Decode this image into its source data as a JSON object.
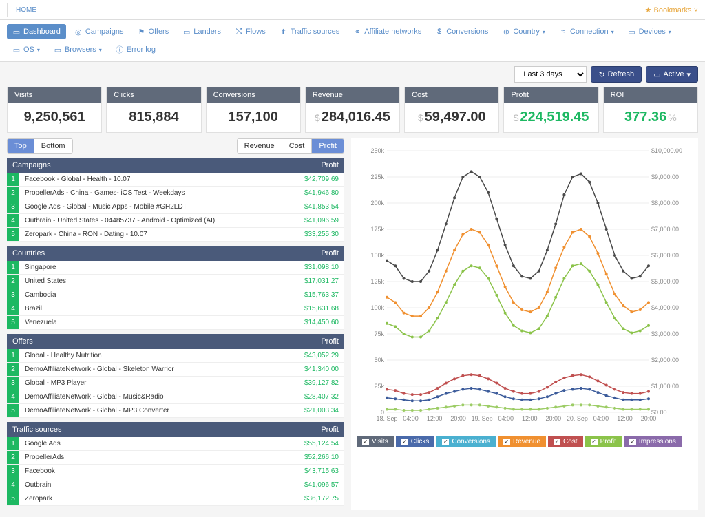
{
  "header": {
    "home_tab": "HOME",
    "bookmarks": "Bookmarks"
  },
  "nav": [
    {
      "label": "Dashboard",
      "icon": "▭",
      "active": true
    },
    {
      "label": "Campaigns",
      "icon": "◎"
    },
    {
      "label": "Offers",
      "icon": "⚑"
    },
    {
      "label": "Landers",
      "icon": "▭"
    },
    {
      "label": "Flows",
      "icon": "⤭"
    },
    {
      "label": "Traffic sources",
      "icon": "⬆"
    },
    {
      "label": "Affiliate networks",
      "icon": "⚭"
    },
    {
      "label": "Conversions",
      "icon": "$"
    },
    {
      "label": "Country",
      "icon": "⊕",
      "dropdown": true
    },
    {
      "label": "Connection",
      "icon": "≈",
      "dropdown": true
    },
    {
      "label": "Devices",
      "icon": "▭",
      "dropdown": true
    },
    {
      "label": "OS",
      "icon": "▭",
      "dropdown": true
    },
    {
      "label": "Browsers",
      "icon": "▭",
      "dropdown": true
    },
    {
      "label": "Error log",
      "icon": "ⓘ"
    }
  ],
  "controls": {
    "date_range": "Last 3 days",
    "refresh": "Refresh",
    "active": "Active"
  },
  "metrics": [
    {
      "label": "Visits",
      "value": "9,250,561",
      "prefix": "",
      "suffix": "",
      "green": false
    },
    {
      "label": "Clicks",
      "value": "815,884",
      "prefix": "",
      "suffix": "",
      "green": false
    },
    {
      "label": "Conversions",
      "value": "157,100",
      "prefix": "",
      "suffix": "",
      "green": false
    },
    {
      "label": "Revenue",
      "value": "284,016.45",
      "prefix": "$",
      "suffix": "",
      "green": false
    },
    {
      "label": "Cost",
      "value": "59,497.00",
      "prefix": "$",
      "suffix": "",
      "green": false
    },
    {
      "label": "Profit",
      "value": "224,519.45",
      "prefix": "$",
      "suffix": "",
      "green": true
    },
    {
      "label": "ROI",
      "value": "377.36",
      "prefix": "",
      "suffix": "%",
      "green": true
    }
  ],
  "toggles": {
    "left": [
      {
        "label": "Top",
        "active": true
      },
      {
        "label": "Bottom"
      }
    ],
    "right": [
      {
        "label": "Revenue"
      },
      {
        "label": "Cost"
      },
      {
        "label": "Profit",
        "active": true
      }
    ]
  },
  "tables": [
    {
      "header": "Campaigns",
      "metric": "Profit",
      "rows": [
        {
          "n": "1",
          "name": "Facebook - Global - Health - 10.07",
          "val": "$42,709.69"
        },
        {
          "n": "2",
          "name": "PropellerAds - China - Games- iOS Test - Weekdays",
          "val": "$41,946.80"
        },
        {
          "n": "3",
          "name": "Google Ads - Global - Music Apps - Mobile #GH2LDT",
          "val": "$41,853.54"
        },
        {
          "n": "4",
          "name": "Outbrain - United States - 04485737 - Android - Optimized (AI)",
          "val": "$41,096.59"
        },
        {
          "n": "5",
          "name": "Zeropark - China - RON - Dating - 10.07",
          "val": "$33,255.30"
        }
      ]
    },
    {
      "header": "Countries",
      "metric": "Profit",
      "rows": [
        {
          "n": "1",
          "name": "Singapore",
          "val": "$31,098.10"
        },
        {
          "n": "2",
          "name": "United States",
          "val": "$17,031.27"
        },
        {
          "n": "3",
          "name": "Cambodia",
          "val": "$15,763.37"
        },
        {
          "n": "4",
          "name": "Brazil",
          "val": "$15,631.68"
        },
        {
          "n": "5",
          "name": "Venezuela",
          "val": "$14,450.60"
        }
      ]
    },
    {
      "header": "Offers",
      "metric": "Profit",
      "rows": [
        {
          "n": "1",
          "name": "Global - Healthy Nutrition",
          "val": "$43,052.29"
        },
        {
          "n": "2",
          "name": "DemoAffiliateNetwork - Global - Skeleton Warrior",
          "val": "$41,340.00"
        },
        {
          "n": "3",
          "name": "Global - MP3 Player",
          "val": "$39,127.82"
        },
        {
          "n": "4",
          "name": "DemoAffiliateNetwork - Global - Music&Radio",
          "val": "$28,407.32"
        },
        {
          "n": "5",
          "name": "DemoAffiliateNetwork - Global - MP3 Converter",
          "val": "$21,003.34"
        }
      ]
    },
    {
      "header": "Traffic sources",
      "metric": "Profit",
      "rows": [
        {
          "n": "1",
          "name": "Google Ads",
          "val": "$55,124.54"
        },
        {
          "n": "2",
          "name": "PropellerAds",
          "val": "$52,266.10"
        },
        {
          "n": "3",
          "name": "Facebook",
          "val": "$43,715.63"
        },
        {
          "n": "4",
          "name": "Outbrain",
          "val": "$41,096.57"
        },
        {
          "n": "5",
          "name": "Zeropark",
          "val": "$36,172.75"
        }
      ]
    }
  ],
  "chart": {
    "y_left": {
      "min": 0,
      "max": 250000,
      "ticks": [
        "0",
        "25k",
        "50k",
        "75k",
        "100k",
        "125k",
        "150k",
        "175k",
        "200k",
        "225k",
        "250k"
      ]
    },
    "y_right": {
      "min": 0,
      "max": 10000,
      "ticks": [
        "$0.00",
        "$1,000.00",
        "$2,000.00",
        "$3,000.00",
        "$4,000.00",
        "$5,000.00",
        "$6,000.00",
        "$7,000.00",
        "$8,000.00",
        "$9,000.00",
        "$10,000.00"
      ]
    },
    "x_labels": [
      "18. Sep",
      "04:00",
      "12:00",
      "20:00",
      "19. Sep",
      "04:00",
      "12:00",
      "20:00",
      "20. Sep",
      "04:00",
      "12:00",
      "20:00"
    ],
    "series": [
      {
        "name": "visits_dark",
        "color": "#4a4a4a",
        "values": [
          145,
          140,
          128,
          125,
          125,
          135,
          155,
          180,
          205,
          225,
          230,
          225,
          210,
          185,
          160,
          140,
          130,
          128,
          135,
          155,
          180,
          208,
          225,
          228,
          220,
          200,
          175,
          150,
          135,
          128,
          130,
          140
        ]
      },
      {
        "name": "clicks_orange",
        "color": "#f09030",
        "values": [
          110,
          105,
          95,
          92,
          92,
          100,
          115,
          135,
          155,
          170,
          175,
          172,
          160,
          140,
          120,
          105,
          98,
          96,
          100,
          115,
          138,
          158,
          172,
          175,
          168,
          152,
          132,
          113,
          102,
          96,
          98,
          105
        ]
      },
      {
        "name": "conv_green",
        "color": "#8bc34a",
        "values": [
          85,
          82,
          75,
          72,
          72,
          78,
          90,
          105,
          122,
          135,
          140,
          138,
          128,
          112,
          95,
          83,
          78,
          76,
          80,
          92,
          110,
          128,
          140,
          142,
          135,
          122,
          105,
          90,
          80,
          76,
          78,
          83
        ]
      },
      {
        "name": "rev_red",
        "color": "#c05050",
        "values": [
          22,
          21,
          18,
          17,
          17,
          19,
          23,
          28,
          32,
          35,
          36,
          35,
          32,
          28,
          23,
          20,
          18,
          18,
          20,
          24,
          29,
          33,
          35,
          36,
          34,
          30,
          26,
          22,
          19,
          18,
          18,
          20
        ]
      },
      {
        "name": "cost_blue",
        "color": "#3a5a9a",
        "values": [
          14,
          13,
          12,
          11,
          11,
          12,
          15,
          18,
          20,
          22,
          23,
          22,
          20,
          18,
          15,
          13,
          12,
          12,
          13,
          15,
          18,
          21,
          22,
          23,
          22,
          19,
          16,
          14,
          12,
          12,
          12,
          13
        ]
      },
      {
        "name": "profit_lgreen",
        "color": "#9ccc65",
        "values": [
          3,
          3,
          2,
          2,
          2,
          3,
          4,
          5,
          6,
          7,
          7,
          7,
          6,
          5,
          4,
          3,
          3,
          3,
          3,
          4,
          5,
          6,
          7,
          7,
          7,
          6,
          5,
          4,
          3,
          3,
          3,
          3
        ]
      }
    ],
    "legend": [
      {
        "label": "Visits",
        "color": "#606a7a"
      },
      {
        "label": "Clicks",
        "color": "#4a6aaa"
      },
      {
        "label": "Conversions",
        "color": "#4ab0d0"
      },
      {
        "label": "Revenue",
        "color": "#f09030"
      },
      {
        "label": "Cost",
        "color": "#c05050"
      },
      {
        "label": "Profit",
        "color": "#8bc34a"
      },
      {
        "label": "Impressions",
        "color": "#8a6aaa"
      }
    ]
  }
}
